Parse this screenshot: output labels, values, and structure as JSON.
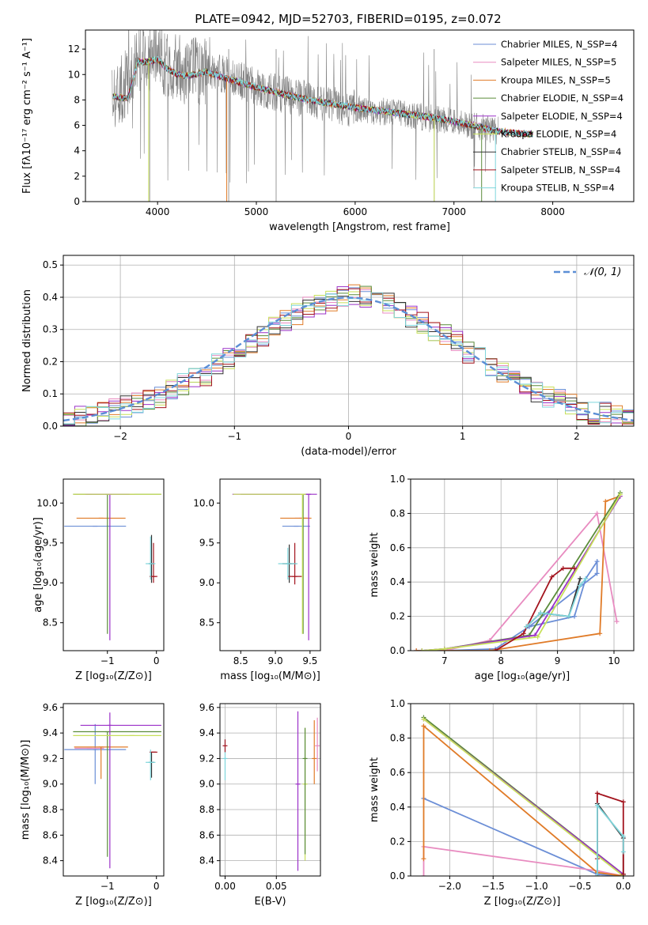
{
  "figure": {
    "title": "PLATE=0942, MJD=52703, FIBERID=0195, z=0.072"
  },
  "chart_data": [
    {
      "id": "spectrum",
      "type": "line",
      "xlabel": "wavelength [Angstrom, rest frame]",
      "ylabel": "Flux [fλ10⁻¹⁷ erg cm⁻² s⁻¹ A⁻¹]",
      "xlim": [
        3270,
        8820
      ],
      "ylim": [
        0,
        13.5
      ],
      "xticks": [
        4000,
        5000,
        6000,
        7000,
        8000
      ],
      "yticks": [
        0,
        2,
        4,
        6,
        8,
        10,
        12
      ],
      "legend_loc": "upper right",
      "data_color": "#808080",
      "data_envelope": {
        "x": [
          3550,
          3700,
          3800,
          3900,
          4000,
          4100,
          4200,
          4300,
          4500,
          4700,
          5000,
          5300,
          5600,
          6000,
          6400,
          6800,
          7200,
          7400
        ],
        "y": [
          8.2,
          9.5,
          11.5,
          11.3,
          11.5,
          10.8,
          10.5,
          10.3,
          10.3,
          10.0,
          9.0,
          8.4,
          7.9,
          7.3,
          7.0,
          6.5,
          6.0,
          5.6
        ]
      },
      "model_curve": {
        "x": [
          3550,
          3700,
          3800,
          3900,
          4000,
          4100,
          4200,
          4300,
          4500,
          4700,
          5000,
          5300,
          5600,
          6000,
          6400,
          6800,
          7200,
          7400,
          7600,
          7800
        ],
        "y": [
          8.3,
          8.1,
          11.0,
          11.0,
          11.2,
          10.4,
          10.0,
          9.9,
          10.2,
          9.7,
          9.0,
          8.4,
          7.9,
          7.4,
          7.0,
          6.6,
          6.0,
          5.6,
          5.4,
          5.3
        ]
      },
      "series": [
        {
          "name": "Chabrier MILES, N_SSP=4",
          "color": "#6b8ed6"
        },
        {
          "name": "Salpeter MILES, N_SSP=5",
          "color": "#e88bc0"
        },
        {
          "name": "Kroupa MILES, N_SSP=5",
          "color": "#e07b28"
        },
        {
          "name": "Chabrier ELODIE, N_SSP=4",
          "color": "#5b8c3a"
        },
        {
          "name": "Salpeter ELODIE, N_SSP=4",
          "color": "#9b30c8"
        },
        {
          "name": "Kroupa ELODIE, N_SSP=4",
          "color": "#c8e05a"
        },
        {
          "name": "Chabrier STELIB, N_SSP=4",
          "color": "#333333"
        },
        {
          "name": "Salpeter STELIB, N_SSP=4",
          "color": "#a3141e"
        },
        {
          "name": "Kroupa STELIB, N_SSP=4",
          "color": "#7fd6dc"
        }
      ]
    },
    {
      "id": "residuals",
      "type": "line",
      "xlabel": "(data-model)/error",
      "ylabel": "Normed distribution",
      "xlim": [
        -2.5,
        2.5
      ],
      "ylim": [
        0,
        0.53
      ],
      "xticks": [
        -2,
        -1,
        0,
        1,
        2
      ],
      "yticks": [
        0.0,
        0.1,
        0.2,
        0.3,
        0.4,
        0.5
      ],
      "grid": true,
      "legend": "𝒩(0, 1)",
      "legend_loc": "upper right",
      "gaussian": {
        "mean": 0,
        "sigma": 1,
        "color": "#5b8ed6",
        "style": "dashed"
      },
      "hist_bins": [
        -2.5,
        -2.4,
        -2.3,
        -2.2,
        -2.1,
        -2.0,
        -1.9,
        -1.8,
        -1.7,
        -1.6,
        -1.5,
        -1.4,
        -1.3,
        -1.2,
        -1.1,
        -1.0,
        -0.9,
        -0.8,
        -0.7,
        -0.6,
        -0.5,
        -0.4,
        -0.3,
        -0.2,
        -0.1,
        0.0,
        0.1,
        0.2,
        0.3,
        0.4,
        0.5,
        0.6,
        0.7,
        0.8,
        0.9,
        1.0,
        1.1,
        1.2,
        1.3,
        1.4,
        1.5,
        1.6,
        1.7,
        1.8,
        1.9,
        2.0,
        2.1,
        2.2,
        2.3,
        2.4,
        2.5
      ],
      "hist_values": [
        0.02,
        0.03,
        0.03,
        0.05,
        0.05,
        0.06,
        0.07,
        0.08,
        0.09,
        0.11,
        0.13,
        0.15,
        0.16,
        0.19,
        0.21,
        0.24,
        0.26,
        0.28,
        0.31,
        0.33,
        0.35,
        0.37,
        0.38,
        0.39,
        0.4,
        0.41,
        0.4,
        0.39,
        0.38,
        0.37,
        0.34,
        0.32,
        0.3,
        0.28,
        0.26,
        0.23,
        0.21,
        0.19,
        0.17,
        0.15,
        0.13,
        0.11,
        0.09,
        0.08,
        0.07,
        0.05,
        0.04,
        0.04,
        0.03,
        0.02
      ]
    },
    {
      "id": "age_vs_Z",
      "type": "scatter",
      "xlabel": "Z [log₁₀(Z/Z⊙)]",
      "ylabel": "age  [log₁₀(age/yr)]",
      "xlim": [
        -1.9,
        0.15
      ],
      "ylim": [
        8.15,
        10.3
      ],
      "xticks": [
        -1,
        0
      ],
      "yticks": [
        8.5,
        9.0,
        9.5,
        10.0
      ],
      "points": [
        {
          "x": -1.25,
          "y": 9.71,
          "xerr": [
            0.63,
            0.63
          ],
          "yerr": [
            0,
            0
          ],
          "series": 0
        },
        {
          "x": -1.37,
          "y": 10.11,
          "xerr": [
            0.3,
            0.3
          ],
          "yerr": [
            0,
            0
          ],
          "series": 1
        },
        {
          "x": -1.13,
          "y": 9.81,
          "xerr": [
            0.5,
            0.5
          ],
          "yerr": [
            0,
            0
          ],
          "series": 2
        },
        {
          "x": -1.0,
          "y": 10.11,
          "xerr": [
            0.7,
            1.1
          ],
          "yerr": [
            1.75,
            0
          ],
          "series": 3
        },
        {
          "x": -0.95,
          "y": 10.11,
          "xerr": [
            0.5,
            0.5
          ],
          "yerr": [
            1.83,
            0
          ],
          "series": 4
        },
        {
          "x": -0.5,
          "y": 10.11,
          "xerr": [
            1.2,
            0.6
          ],
          "yerr": [
            0,
            0
          ],
          "series": 5
        },
        {
          "x": -0.1,
          "y": 9.24,
          "xerr": [
            0.05,
            0.05
          ],
          "yerr": [
            0.24,
            0.36
          ],
          "series": 6
        },
        {
          "x": -0.06,
          "y": 9.08,
          "xerr": [
            0.08,
            0.08
          ],
          "yerr": [
            0.08,
            0.42
          ],
          "series": 7
        },
        {
          "x": -0.12,
          "y": 9.24,
          "xerr": [
            0.1,
            0.1
          ],
          "yerr": [
            0.2,
            0.34
          ],
          "series": 8
        }
      ]
    },
    {
      "id": "age_vs_mass",
      "type": "scatter",
      "xlabel": "mass [log₁₀(M/M⊙)]",
      "ylabel": "",
      "xlim": [
        8.2,
        9.65
      ],
      "ylim": [
        8.15,
        10.3
      ],
      "xticks": [
        8.5,
        9.0,
        9.5
      ],
      "yticks": [
        8.5,
        9.0,
        9.5,
        10.0
      ],
      "points": [
        {
          "x": 9.3,
          "y": 9.71,
          "xerr": [
            0.2,
            0.2
          ],
          "yerr": [
            0,
            0
          ],
          "series": 0
        },
        {
          "x": 9.38,
          "y": 9.81,
          "xerr": [
            0.1,
            0.1
          ],
          "yerr": [
            0,
            0
          ],
          "series": 1
        },
        {
          "x": 9.42,
          "y": 9.81,
          "xerr": [
            0.35,
            0.1
          ],
          "yerr": [
            0,
            0
          ],
          "series": 2
        },
        {
          "x": 9.4,
          "y": 10.11,
          "xerr": [
            0.9,
            0.1
          ],
          "yerr": [
            1.75,
            0
          ],
          "series": 3
        },
        {
          "x": 9.48,
          "y": 10.11,
          "xerr": [
            1.1,
            0.12
          ],
          "yerr": [
            1.83,
            0
          ],
          "series": 4
        },
        {
          "x": 9.39,
          "y": 10.11,
          "xerr": [
            1.0,
            0.05
          ],
          "yerr": [
            1.75,
            0
          ],
          "series": 5
        },
        {
          "x": 9.2,
          "y": 9.24,
          "xerr": [
            0.1,
            0.1
          ],
          "yerr": [
            0.24,
            0.24
          ],
          "series": 6
        },
        {
          "x": 9.28,
          "y": 9.08,
          "xerr": [
            0.1,
            0.1
          ],
          "yerr": [
            0.1,
            0.42
          ],
          "series": 7
        },
        {
          "x": 9.18,
          "y": 9.24,
          "xerr": [
            0.14,
            0.14
          ],
          "yerr": [
            0.2,
            0.2
          ],
          "series": 8
        }
      ]
    },
    {
      "id": "massweight_vs_age",
      "type": "line",
      "xlabel": "age  [log₁₀(age/yr)]",
      "ylabel": "mass weight",
      "xlim": [
        6.4,
        10.35
      ],
      "ylim": [
        0,
        1
      ],
      "xticks": [
        7,
        8,
        9,
        10
      ],
      "yticks": [
        0.0,
        0.2,
        0.4,
        0.6,
        0.8,
        1.0
      ],
      "grid": true,
      "lines": [
        {
          "series": 0,
          "x": [
            6.5,
            7.0,
            7.9,
            8.5,
            9.3,
            9.5,
            9.7,
            9.7,
            8.5
          ],
          "y": [
            0.0,
            0.0,
            0.01,
            0.14,
            0.2,
            0.42,
            0.52,
            0.45,
            0.14
          ]
        },
        {
          "series": 1,
          "x": [
            6.5,
            7.0,
            7.8,
            9.7,
            10.05
          ],
          "y": [
            0.0,
            0.0,
            0.06,
            0.8,
            0.17
          ]
        },
        {
          "series": 2,
          "x": [
            6.5,
            7.8,
            9.75,
            9.85,
            10.1
          ],
          "y": [
            0.0,
            0.0,
            0.1,
            0.87,
            0.9
          ]
        },
        {
          "series": 3,
          "x": [
            6.6,
            7.0,
            8.5,
            10.11
          ],
          "y": [
            0.0,
            0.01,
            0.09,
            0.92
          ]
        },
        {
          "series": 4,
          "x": [
            6.6,
            7.0,
            8.6,
            10.11
          ],
          "y": [
            0.0,
            0.01,
            0.09,
            0.9
          ]
        },
        {
          "series": 5,
          "x": [
            6.6,
            7.0,
            8.65,
            10.11
          ],
          "y": [
            0.0,
            0.01,
            0.08,
            0.91
          ]
        },
        {
          "series": 6,
          "x": [
            8.45,
            8.7,
            9.2,
            9.4
          ],
          "y": [
            0.14,
            0.22,
            0.2,
            0.42
          ]
        },
        {
          "series": 7,
          "x": [
            7.9,
            8.4,
            8.9,
            9.1,
            9.3
          ],
          "y": [
            0.0,
            0.1,
            0.43,
            0.48,
            0.48
          ]
        },
        {
          "series": 8,
          "x": [
            8.45,
            8.7,
            9.2,
            9.4,
            9.5
          ],
          "y": [
            0.14,
            0.22,
            0.2,
            0.38,
            0.42
          ]
        }
      ]
    },
    {
      "id": "mass_vs_Z",
      "type": "scatter",
      "xlabel": "Z [log₁₀(Z/Z⊙)]",
      "ylabel": "mass [log₁₀(M/M⊙)]",
      "xlim": [
        -1.9,
        0.15
      ],
      "ylim": [
        8.28,
        9.63
      ],
      "xticks": [
        -1,
        0
      ],
      "yticks": [
        8.4,
        8.6,
        8.8,
        9.0,
        9.2,
        9.4,
        9.6
      ],
      "points": [
        {
          "x": -1.25,
          "y": 9.27,
          "xerr": [
            0.63,
            0.63
          ],
          "yerr": [
            0.27,
            0.2
          ],
          "series": 0
        },
        {
          "x": -1.37,
          "y": 9.28,
          "xerr": [
            0.3,
            0.3
          ],
          "yerr": [
            0,
            0
          ],
          "series": 1
        },
        {
          "x": -1.13,
          "y": 9.29,
          "xerr": [
            0.55,
            0.55
          ],
          "yerr": [
            0.25,
            0
          ],
          "series": 2
        },
        {
          "x": -1.0,
          "y": 9.41,
          "xerr": [
            0.7,
            1.1
          ],
          "yerr": [
            0.98,
            0
          ],
          "series": 3
        },
        {
          "x": -0.95,
          "y": 9.46,
          "xerr": [
            0.6,
            1.05
          ],
          "yerr": [
            1.12,
            0.1
          ],
          "series": 4
        },
        {
          "x": -0.5,
          "y": 9.38,
          "xerr": [
            1.2,
            0.6
          ],
          "yerr": [
            0,
            0
          ],
          "series": 5
        },
        {
          "x": -0.1,
          "y": 9.17,
          "xerr": [
            0.05,
            0.05
          ],
          "yerr": [
            0.12,
            0.08
          ],
          "series": 6
        },
        {
          "x": -0.06,
          "y": 9.25,
          "xerr": [
            0.08,
            0.08
          ],
          "yerr": [
            0.0,
            0.0
          ],
          "series": 7
        },
        {
          "x": -0.12,
          "y": 9.17,
          "xerr": [
            0.1,
            0.1
          ],
          "yerr": [
            0.14,
            0.1
          ],
          "series": 8
        }
      ]
    },
    {
      "id": "mass_vs_ebv",
      "type": "scatter",
      "xlabel": "E(B-V)",
      "ylabel": "",
      "xlim": [
        -0.005,
        0.093
      ],
      "ylim": [
        8.28,
        9.63
      ],
      "xticks": [
        0.0,
        0.05
      ],
      "yticks": [
        8.4,
        8.6,
        8.8,
        9.0,
        9.2,
        9.4,
        9.6
      ],
      "grid": true,
      "points": [
        {
          "x": 0.0,
          "y": 9.2,
          "xerr": [
            0,
            0
          ],
          "yerr": [
            0.17,
            0.15
          ],
          "series": 8
        },
        {
          "x": 0.0,
          "y": 9.3,
          "xerr": [
            0,
            0
          ],
          "yerr": [
            0.05,
            0.05
          ],
          "series": 7
        },
        {
          "x": 0.071,
          "y": 9.0,
          "xerr": [
            0,
            0
          ],
          "yerr": [
            0.68,
            0.57
          ],
          "series": 4
        },
        {
          "x": 0.078,
          "y": 9.0,
          "xerr": [
            0,
            0
          ],
          "yerr": [
            0.6,
            0.44
          ],
          "series": 5
        },
        {
          "x": 0.078,
          "y": 9.2,
          "xerr": [
            0,
            0
          ],
          "yerr": [
            0.75,
            0.24
          ],
          "series": 3
        },
        {
          "x": 0.087,
          "y": 9.2,
          "xerr": [
            0,
            0
          ],
          "yerr": [
            0.2,
            0.3
          ],
          "series": 2
        },
        {
          "x": 0.09,
          "y": 9.3,
          "xerr": [
            0,
            0
          ],
          "yerr": [
            0.2,
            0.22
          ],
          "series": 1
        }
      ]
    },
    {
      "id": "massweight_vs_Z",
      "type": "line",
      "xlabel": "Z [log₁₀(Z/Z⊙)]",
      "ylabel": "mass weight",
      "xlim": [
        -2.45,
        0.12
      ],
      "ylim": [
        0,
        1
      ],
      "xticks": [
        -2.0,
        -1.5,
        -1.0,
        -0.5,
        0.0
      ],
      "yticks": [
        0.0,
        0.2,
        0.4,
        0.6,
        0.8,
        1.0
      ],
      "grid": true,
      "lines": [
        {
          "series": 0,
          "x": [
            -2.3,
            -0.3,
            0.0
          ],
          "y": [
            0.45,
            0.01,
            0.0
          ]
        },
        {
          "series": 1,
          "x": [
            -2.3,
            -2.3,
            -0.3,
            0.0
          ],
          "y": [
            0.0,
            0.17,
            0.03,
            0.0
          ]
        },
        {
          "series": 2,
          "x": [
            -2.3,
            -2.3,
            -0.3,
            0.0
          ],
          "y": [
            0.1,
            0.87,
            0.02,
            0.0
          ]
        },
        {
          "series": 3,
          "x": [
            -2.3,
            0.0
          ],
          "y": [
            0.92,
            0.01
          ]
        },
        {
          "series": 4,
          "x": [
            -2.3,
            0.0
          ],
          "y": [
            0.91,
            0.01
          ]
        },
        {
          "series": 5,
          "x": [
            -2.3,
            0.0
          ],
          "y": [
            0.91,
            0.0
          ]
        },
        {
          "series": 6,
          "x": [
            -0.3,
            -0.3,
            0.0,
            0.0
          ],
          "y": [
            0.0,
            0.42,
            0.22,
            0.01
          ]
        },
        {
          "series": 7,
          "x": [
            -0.3,
            -0.3,
            0.0,
            0.0
          ],
          "y": [
            0.1,
            0.48,
            0.43,
            0.01
          ]
        },
        {
          "series": 8,
          "x": [
            -0.3,
            -0.3,
            0.0,
            0.0
          ],
          "y": [
            0.0,
            0.41,
            0.23,
            0.14
          ]
        }
      ]
    }
  ]
}
